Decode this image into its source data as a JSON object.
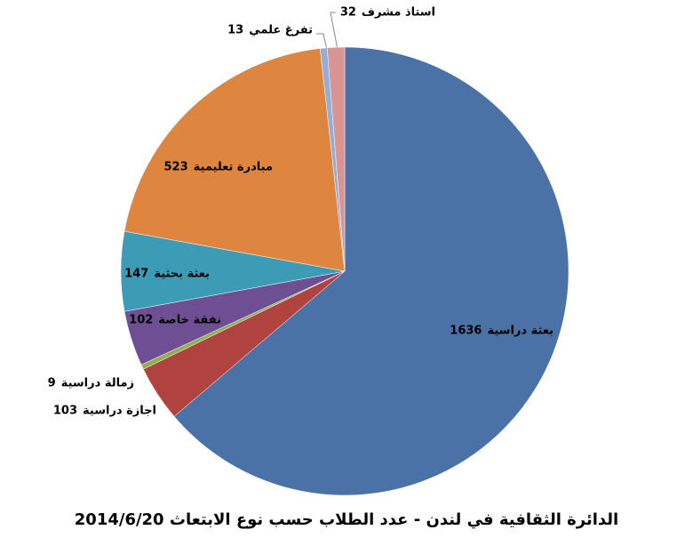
{
  "chart_data": {
    "type": "pie",
    "title": "الدائرة الثقافية في لندن - عدد الطلاب حسب نوع الابتعاث 2014/6/20",
    "categories": [
      "بعثة دراسية",
      "اجازة دراسية",
      "زمالة دراسية",
      "نفقة خاصة",
      "بعثة بحثية",
      "مبادرة تعليمية",
      "تفرغ علمي",
      "استاذ مشرف"
    ],
    "values": [
      1636,
      103,
      9,
      102,
      147,
      523,
      13,
      32
    ],
    "colors": [
      "#4a72a6",
      "#b04340",
      "#8fb04a",
      "#6e4f94",
      "#3d9cb5",
      "#de8640",
      "#95aed6",
      "#d99594"
    ]
  }
}
